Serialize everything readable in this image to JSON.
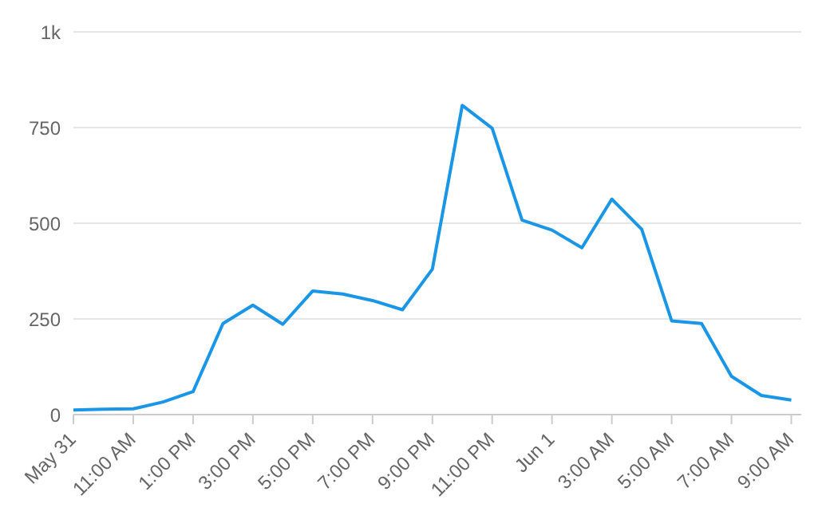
{
  "chart_data": {
    "type": "line",
    "x": [
      "--05-31T09:00",
      "--05-31T10:00",
      "--05-31T11:00",
      "--05-31T12:00",
      "--05-31T13:00",
      "--05-31T14:00",
      "--05-31T15:00",
      "--05-31T16:00",
      "--05-31T17:00",
      "--05-31T18:00",
      "--05-31T19:00",
      "--05-31T20:00",
      "--05-31T21:00",
      "--05-31T22:00",
      "--05-31T23:00",
      "--06-01T00:00",
      "--06-01T01:00",
      "--06-01T02:00",
      "--06-01T03:00",
      "--06-01T04:00",
      "--06-01T05:00",
      "--06-01T06:00",
      "--06-01T07:00",
      "--06-01T08:00",
      "--06-01T09:00"
    ],
    "series": [
      {
        "color": "#1a96e6",
        "values": [
          12,
          14,
          15,
          33,
          60,
          238,
          286,
          236,
          323,
          315,
          298,
          274,
          380,
          808,
          748,
          508,
          482,
          436,
          563,
          484,
          245,
          238,
          100,
          50,
          38
        ]
      }
    ],
    "xlim": [
      "--05-31T09:00",
      "--06-01T09:20"
    ],
    "xticks": [
      {
        "value": "--05-31T09:00",
        "label": "May 31"
      },
      {
        "value": "--05-31T11:00",
        "label": "11:00 AM"
      },
      {
        "value": "--05-31T13:00",
        "label": "1:00 PM"
      },
      {
        "value": "--05-31T15:00",
        "label": "3:00 PM"
      },
      {
        "value": "--05-31T17:00",
        "label": "5:00 PM"
      },
      {
        "value": "--05-31T19:00",
        "label": "7:00 PM"
      },
      {
        "value": "--05-31T21:00",
        "label": "9:00 PM"
      },
      {
        "value": "--05-31T23:00",
        "label": "11:00 PM"
      },
      {
        "value": "--06-01T01:00",
        "label": "Jun 1"
      },
      {
        "value": "--06-01T03:00",
        "label": "3:00 AM"
      },
      {
        "value": "--06-01T05:00",
        "label": "5:00 AM"
      },
      {
        "value": "--06-01T07:00",
        "label": "7:00 AM"
      },
      {
        "value": "--06-01T09:00",
        "label": "9:00 AM"
      }
    ],
    "ylim": [
      0,
      1000
    ],
    "yticks": [
      0,
      250,
      500,
      750,
      {
        "value": 1000,
        "label": "1k"
      }
    ],
    "grid": "y",
    "legend": false,
    "marker": "none",
    "line_style": "solid"
  }
}
